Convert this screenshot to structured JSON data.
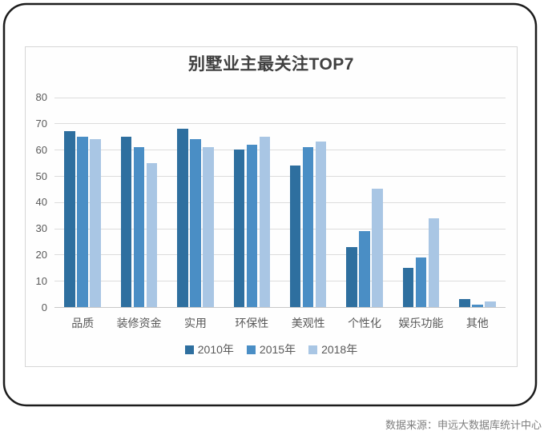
{
  "title": "别墅业主最关注TOP7",
  "footer": {
    "source_label": "数据来源：申远大数据库统计中心"
  },
  "colors": {
    "frame": "#1c1c1c",
    "panel_border": "#d6d6d6",
    "grid": "#dcdcdc",
    "axis_text": "#595959",
    "title_text": "#404040",
    "footer_text": "#7f7f7f"
  },
  "chart_data": {
    "type": "bar",
    "title": "别墅业主最关注TOP7",
    "categories": [
      "品质",
      "装修资金",
      "实用",
      "环保性",
      "美观性",
      "个性化",
      "娱乐功能",
      "其他"
    ],
    "series": [
      {
        "name": "2010年",
        "color": "#2e6f9f",
        "values": [
          67,
          65,
          68,
          60,
          54,
          23,
          15,
          3
        ]
      },
      {
        "name": "2015年",
        "color": "#4a8ec5",
        "values": [
          65,
          61,
          64,
          62,
          61,
          29,
          19,
          1
        ]
      },
      {
        "name": "2018年",
        "color": "#a9c6e4",
        "values": [
          64,
          55,
          61,
          65,
          63,
          45,
          34,
          2
        ]
      }
    ],
    "xlabel": "",
    "ylabel": "",
    "ylim": [
      0,
      80
    ],
    "yticks": [
      0,
      10,
      20,
      30,
      40,
      50,
      60,
      70,
      80
    ],
    "grid": true,
    "legend_position": "bottom"
  }
}
